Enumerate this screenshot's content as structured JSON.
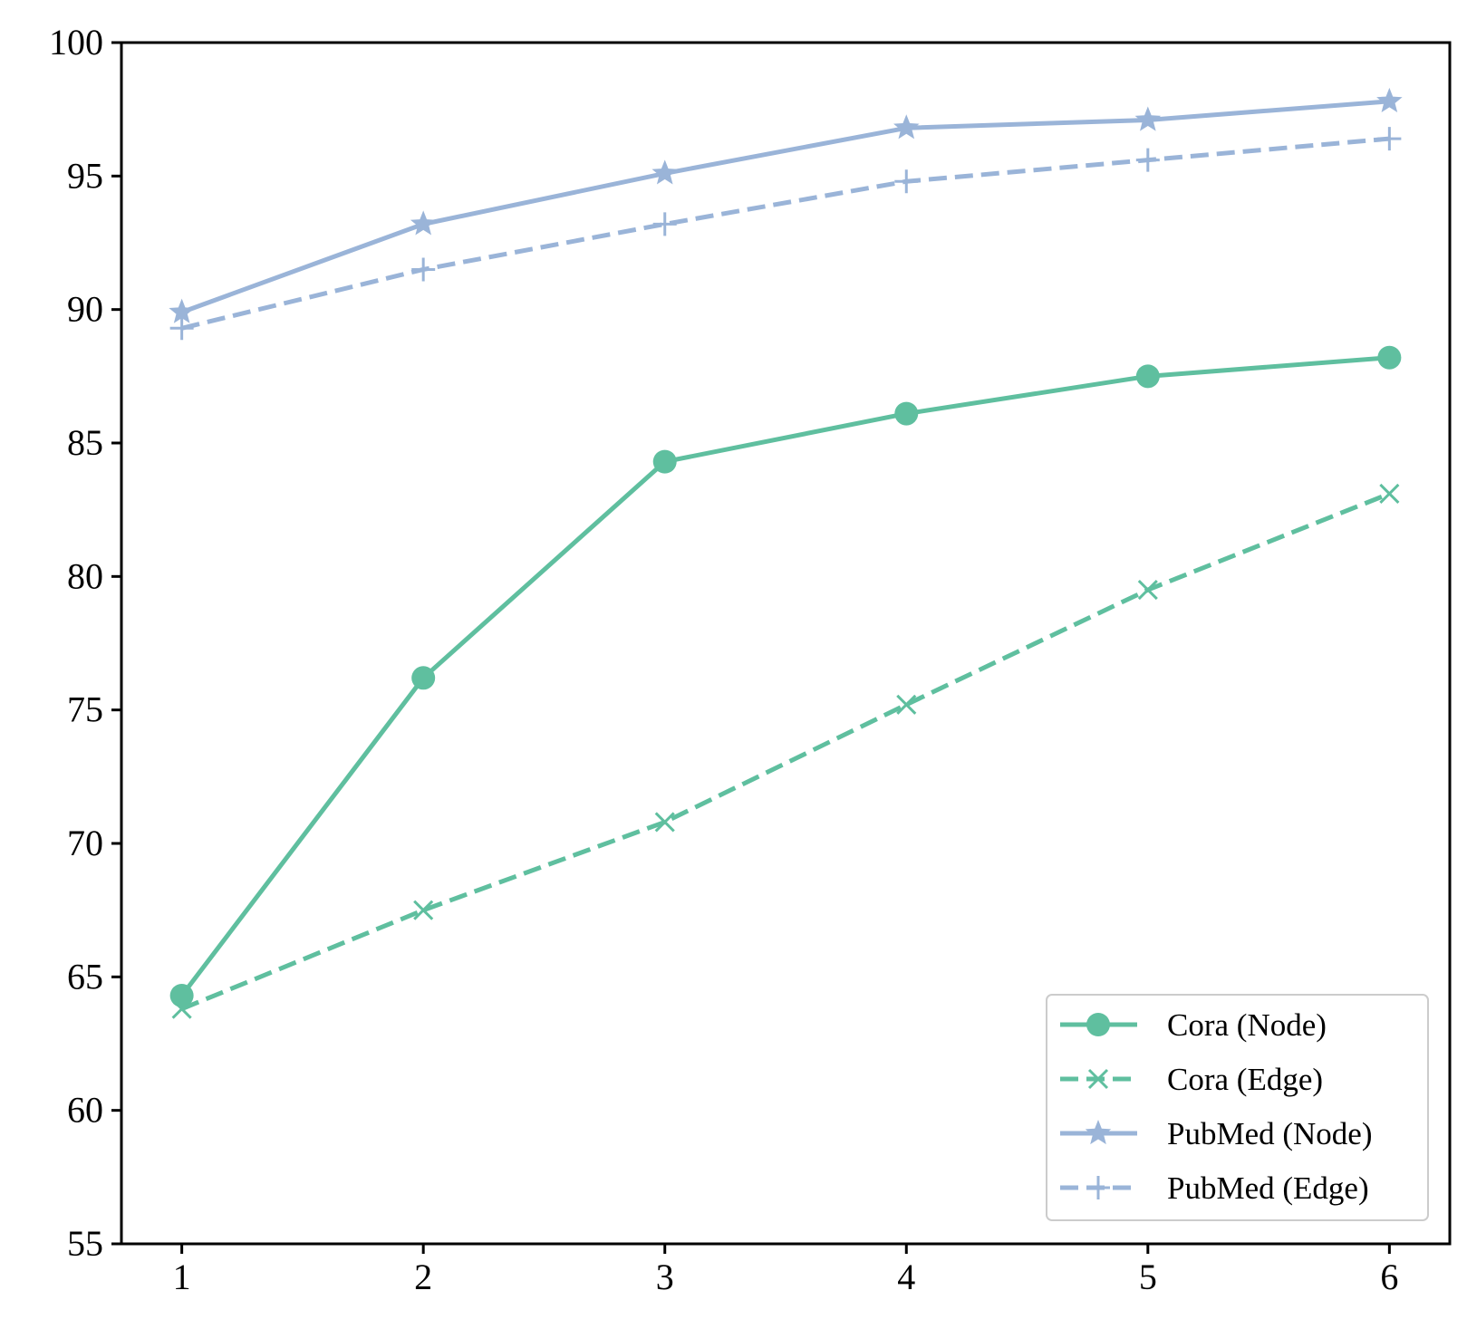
{
  "chart_data": {
    "type": "line",
    "title": "",
    "xlabel": "",
    "ylabel": "",
    "x": [
      1,
      2,
      3,
      4,
      5,
      6
    ],
    "xlim": [
      0.75,
      6.25
    ],
    "ylim": [
      55,
      100
    ],
    "xticks": [
      "1",
      "2",
      "3",
      "4",
      "5",
      "6"
    ],
    "yticks": [
      "55",
      "60",
      "65",
      "70",
      "75",
      "80",
      "85",
      "90",
      "95",
      "100"
    ],
    "grid": false,
    "legend_position": "lower-right",
    "series": [
      {
        "name": "Cora (Node)",
        "values": [
          64.3,
          76.2,
          84.3,
          86.1,
          87.5,
          88.2
        ],
        "color": "#5fbf9f",
        "line": "solid",
        "marker": "circle"
      },
      {
        "name": "Cora (Edge)",
        "values": [
          63.8,
          67.5,
          70.8,
          75.2,
          79.5,
          83.1
        ],
        "color": "#5fbf9f",
        "line": "dashed",
        "marker": "x"
      },
      {
        "name": "PubMed (Node)",
        "values": [
          89.9,
          93.2,
          95.1,
          96.8,
          97.1,
          97.8
        ],
        "color": "#9ab4d8",
        "line": "solid",
        "marker": "star"
      },
      {
        "name": "PubMed (Edge)",
        "values": [
          89.3,
          91.5,
          93.2,
          94.8,
          95.6,
          96.4
        ],
        "color": "#9ab4d8",
        "line": "dashed",
        "marker": "plus"
      }
    ]
  }
}
